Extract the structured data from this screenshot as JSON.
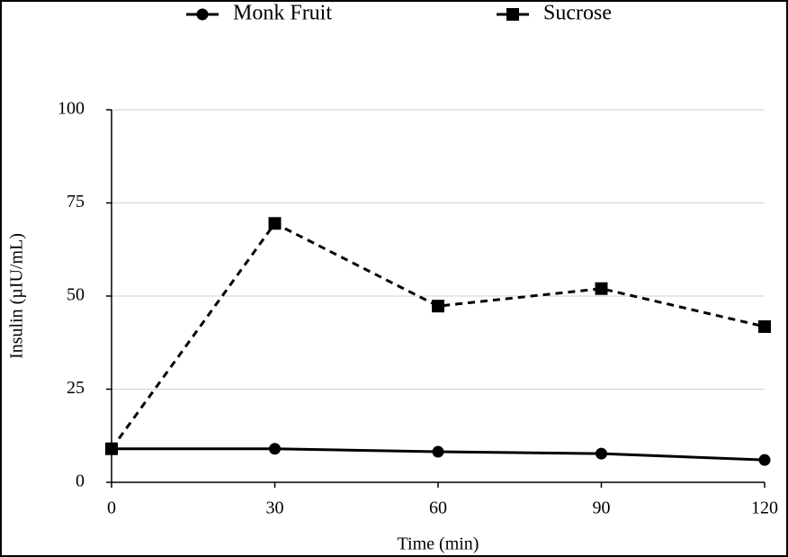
{
  "chart_data": {
    "type": "line",
    "x_label": "Time (min)",
    "y_label": "Insulin (µIU/mL)",
    "x": [
      0,
      30,
      60,
      90,
      120
    ],
    "series": [
      {
        "name": "Monk Fruit",
        "color": "#000000",
        "marker": "circle",
        "line_style": "solid",
        "values": [
          9,
          9,
          8.2,
          7.7,
          6
        ]
      },
      {
        "name": "Sucrose",
        "color": "#000000",
        "marker": "square",
        "line_style": "dashed",
        "values": [
          9,
          69.5,
          47.3,
          52,
          41.8
        ]
      }
    ],
    "xlim": [
      0,
      120
    ],
    "xticks": [
      0,
      30,
      60,
      90,
      120
    ],
    "ylim": [
      0,
      100
    ],
    "yticks": [
      0,
      25,
      50,
      75,
      100
    ],
    "grid": true,
    "legend": "top"
  }
}
